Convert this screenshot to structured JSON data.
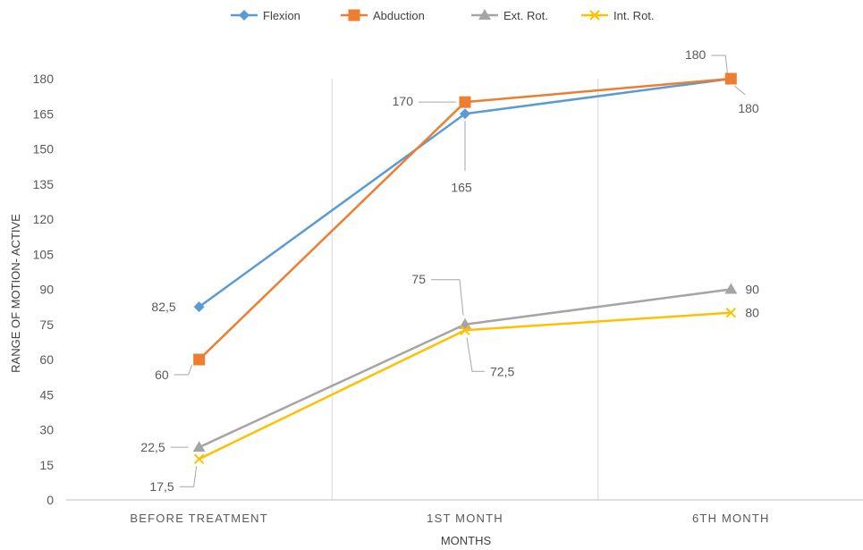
{
  "chart_data": {
    "type": "line",
    "categories": [
      "BEFORE TREATMENT",
      "1ST MONTH",
      "6TH MONTH"
    ],
    "xlabel": "MONTHS",
    "ylabel": "RANGE OF MOTION- ACTIVE",
    "ylim": [
      0,
      180
    ],
    "yticks": [
      0,
      15,
      30,
      45,
      60,
      75,
      90,
      105,
      120,
      135,
      150,
      165,
      180
    ],
    "grid": "vertical category dividers",
    "legend": "top-center",
    "series": [
      {
        "name": "Flexion",
        "values": [
          82.5,
          165,
          180
        ],
        "labels": [
          "82,5",
          "165",
          "180"
        ],
        "color": "#5b9bd5",
        "marker": "diamond"
      },
      {
        "name": "Abduction",
        "values": [
          60,
          170,
          180
        ],
        "labels": [
          "60",
          "170",
          "180"
        ],
        "color": "#ed7d31",
        "marker": "square"
      },
      {
        "name": "Ext. Rot.",
        "values": [
          22.5,
          75,
          90
        ],
        "labels": [
          "22,5",
          "75",
          "90"
        ],
        "color": "#a5a5a5",
        "marker": "triangle"
      },
      {
        "name": "Int. Rot.",
        "values": [
          17.5,
          72.5,
          80
        ],
        "labels": [
          "17,5",
          "72,5",
          "80"
        ],
        "color": "#ffc000",
        "marker": "x"
      }
    ]
  }
}
